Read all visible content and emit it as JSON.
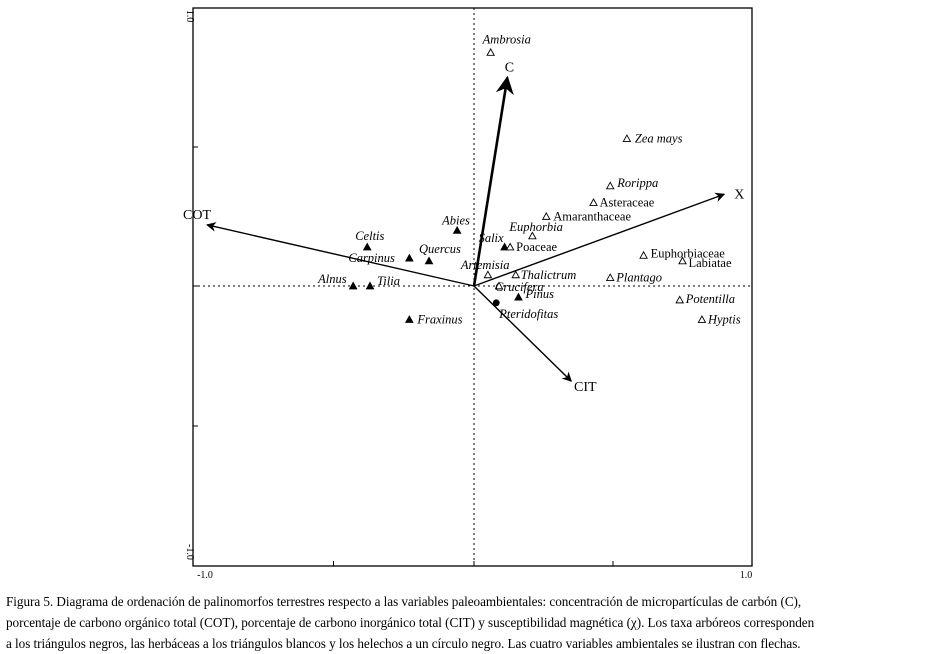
{
  "chart_data": {
    "type": "scatter",
    "title": "",
    "xlabel": "",
    "ylabel": "",
    "xlim": [
      -1.0,
      1.0
    ],
    "ylim": [
      -1.0,
      1.0
    ],
    "x_tick_labels": [
      "-1.0",
      "1.0"
    ],
    "y_tick_labels": [
      "1.0",
      "-1.0"
    ],
    "grid": false,
    "zero_lines": "dotted",
    "legend": "none",
    "colors": {
      "axes": "#000000",
      "arboreal": "#000000",
      "herbaceous": "#ffffff",
      "fern": "#000000"
    },
    "series": [
      {
        "name": "",
        "marker": "filled-triangle",
        "points": [
          {
            "label": "Abies",
            "x": -0.06,
            "y": 0.2
          },
          {
            "label": "Celtis",
            "x": -0.38,
            "y": 0.14
          },
          {
            "label": "Carpinus",
            "x": -0.23,
            "y": 0.1
          },
          {
            "label": "Quercus",
            "x": -0.16,
            "y": 0.09
          },
          {
            "label": "Alnus",
            "x": -0.43,
            "y": 0.0
          },
          {
            "label": "Tilia",
            "x": -0.37,
            "y": 0.0
          },
          {
            "label": "Fraxinus",
            "x": -0.23,
            "y": -0.12
          },
          {
            "label": "Salix",
            "x": 0.11,
            "y": 0.14
          },
          {
            "label": "Pinus",
            "x": 0.16,
            "y": -0.04
          }
        ]
      },
      {
        "name": "",
        "marker": "open-triangle",
        "points": [
          {
            "label": "Ambrosia",
            "x": 0.06,
            "y": 0.84
          },
          {
            "label": "Zea mays",
            "x": 0.55,
            "y": 0.53
          },
          {
            "label": "Rorippa",
            "x": 0.49,
            "y": 0.36
          },
          {
            "label": "Asteraceae",
            "x": 0.43,
            "y": 0.3
          },
          {
            "label": "Amaranthaceae",
            "x": 0.26,
            "y": 0.25
          },
          {
            "label": "Euphorbia",
            "x": 0.21,
            "y": 0.18
          },
          {
            "label": "Poaceae",
            "x": 0.13,
            "y": 0.14
          },
          {
            "label": "Artemisia",
            "x": 0.05,
            "y": 0.04
          },
          {
            "label": "Thalictrum",
            "x": 0.15,
            "y": 0.04
          },
          {
            "label": "Crucifera",
            "x": 0.09,
            "y": 0.0
          },
          {
            "label": "Plantago",
            "x": 0.49,
            "y": 0.03
          },
          {
            "label": "Euphorbiaceae",
            "x": 0.61,
            "y": 0.11
          },
          {
            "label": "Labiatae",
            "x": 0.75,
            "y": 0.09
          },
          {
            "label": "Potentilla",
            "x": 0.74,
            "y": -0.05
          },
          {
            "label": "Hyptis",
            "x": 0.82,
            "y": -0.12
          }
        ]
      },
      {
        "name": "",
        "marker": "filled-circle",
        "points": [
          {
            "label": "Pteridofitas",
            "x": 0.08,
            "y": -0.06
          }
        ]
      }
    ],
    "arrows": [
      {
        "label": "C",
        "x": 0.12,
        "y": 0.75
      },
      {
        "label": "COT",
        "x": -0.95,
        "y": 0.22
      },
      {
        "label": "X",
        "x": 0.9,
        "y": 0.33
      },
      {
        "label": "CIT",
        "x": 0.35,
        "y": -0.34
      }
    ]
  },
  "caption": {
    "lines": [
      "Figura 5. Diagrama de ordenación de palinomorfos terrestres respecto a las variables paleoambientales: concentración de micropartículas de carbón (C),",
      "porcentaje de carbono orgánico total (COT), porcentaje de carbono inorgánico total (CIT) y susceptibilidad magnética (χ). Los taxa arbóreos corresponden",
      "a los triángulos negros, las herbáceas a los triángulos blancos y los helechos a un círculo negro. Las cuatro variables ambientales se ilustran con flechas."
    ]
  }
}
